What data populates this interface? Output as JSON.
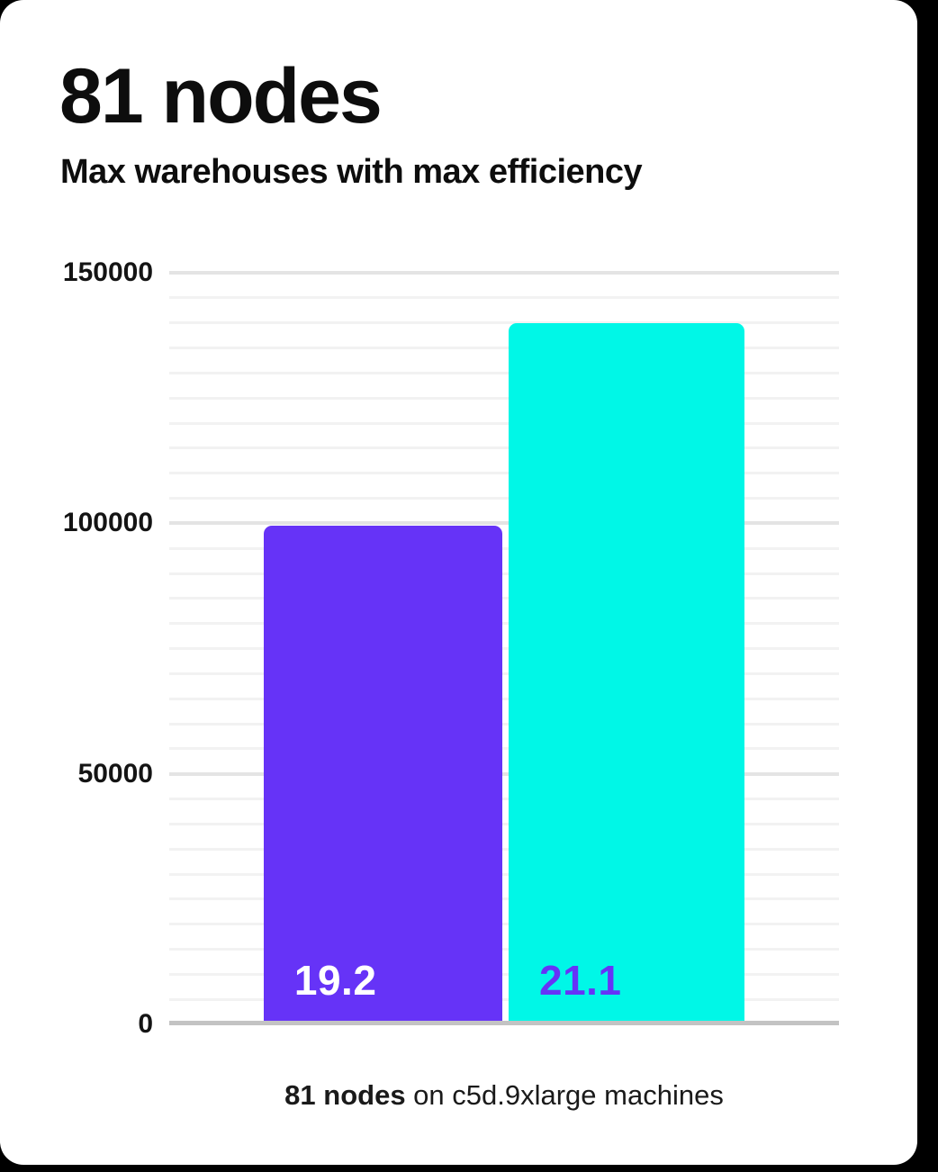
{
  "theme": {
    "page_background": "#000000",
    "card_background": "#ffffff",
    "heading_text_color": "#0d0d0d",
    "tick_text_color": "#141414"
  },
  "header": {
    "title": "81 nodes",
    "subtitle": "Max warehouses with max efficiency"
  },
  "footer": {
    "caption_bold": "81 nodes",
    "caption_rest": " on c5d.9xlarge machines"
  },
  "chart_data": {
    "type": "bar",
    "title": "81 nodes",
    "subtitle": "Max warehouses with max efficiency",
    "xlabel": "",
    "ylabel": "",
    "categories": [
      "19.2",
      "21.1"
    ],
    "values": [
      99500,
      140000
    ],
    "series": [
      {
        "name": "19.2",
        "value": 99500,
        "color": "#6633f7",
        "label_color": "#ffffff"
      },
      {
        "name": "21.1",
        "value": 140000,
        "color": "#00f7e7",
        "label_color": "#6633f7"
      }
    ],
    "ylim": [
      0,
      150000
    ],
    "y_ticks": [
      {
        "value": 0,
        "label": "0"
      },
      {
        "value": 50000,
        "label": "50000"
      },
      {
        "value": 100000,
        "label": "100000"
      },
      {
        "value": 150000,
        "label": "150000"
      }
    ],
    "y_minor_step": 5000,
    "grid": "horizontal, minor lines every 5000, major lines every 50000",
    "legend": "none",
    "colors": {
      "grid_minor": "#f2f2f2",
      "grid_major": "#e4e4e4",
      "axis_line": "#c3c3c3"
    }
  }
}
